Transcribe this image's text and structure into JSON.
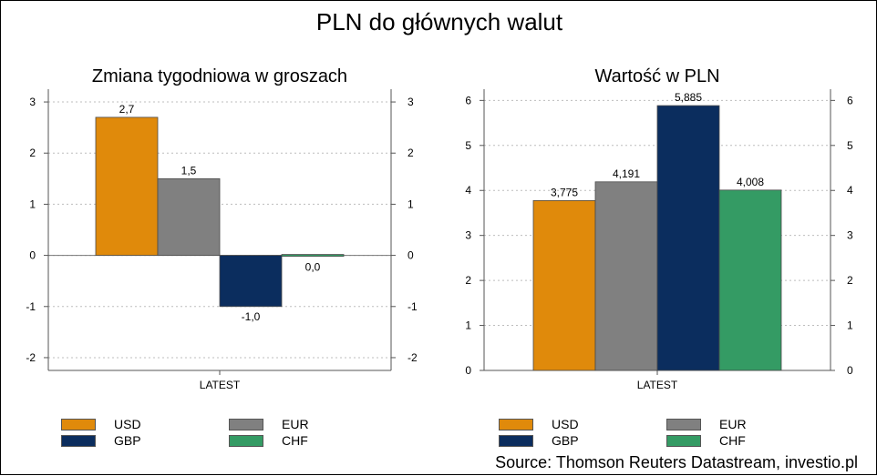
{
  "page": {
    "title": "PLN do głównych walut",
    "source": "Source: Thomson Reuters Datastream, investio.pl"
  },
  "legend": [
    {
      "name": "USD",
      "color": "#E08A0B"
    },
    {
      "name": "EUR",
      "color": "#808080"
    },
    {
      "name": "GBP",
      "color": "#0B2D5E"
    },
    {
      "name": "CHF",
      "color": "#349B64"
    }
  ],
  "chart_data": [
    {
      "type": "bar",
      "title": "Zmiana tygodniowa w groszach",
      "categories": [
        "LATEST"
      ],
      "series": [
        {
          "name": "USD",
          "values": [
            2.7
          ],
          "label": "2,7",
          "color": "#E08A0B"
        },
        {
          "name": "EUR",
          "values": [
            1.5
          ],
          "label": "1,5",
          "color": "#808080"
        },
        {
          "name": "GBP",
          "values": [
            -1.0
          ],
          "label": "-1,0",
          "color": "#0B2D5E"
        },
        {
          "name": "CHF",
          "values": [
            0.0
          ],
          "label": "0,0",
          "color": "#349B64"
        }
      ],
      "ylim": [
        -2.25,
        3.25
      ],
      "yticks": [
        -2,
        -1,
        0,
        1,
        2,
        3
      ],
      "ytick_labels": [
        "-2",
        "-1",
        "0",
        "1",
        "2",
        "3"
      ],
      "grid": true,
      "axes": "left-and-right"
    },
    {
      "type": "bar",
      "title": "Wartość w PLN",
      "categories": [
        "LATEST"
      ],
      "series": [
        {
          "name": "USD",
          "values": [
            3.775
          ],
          "label": "3,775",
          "color": "#E08A0B"
        },
        {
          "name": "EUR",
          "values": [
            4.191
          ],
          "label": "4,191",
          "color": "#808080"
        },
        {
          "name": "GBP",
          "values": [
            5.885
          ],
          "label": "5,885",
          "color": "#0B2D5E"
        },
        {
          "name": "CHF",
          "values": [
            4.008
          ],
          "label": "4,008",
          "color": "#349B64"
        }
      ],
      "ylim": [
        0,
        6.25
      ],
      "yticks": [
        0,
        1,
        2,
        3,
        4,
        5,
        6
      ],
      "ytick_labels": [
        "0",
        "1",
        "2",
        "3",
        "4",
        "5",
        "6"
      ],
      "grid": true,
      "axes": "left-and-right"
    }
  ]
}
